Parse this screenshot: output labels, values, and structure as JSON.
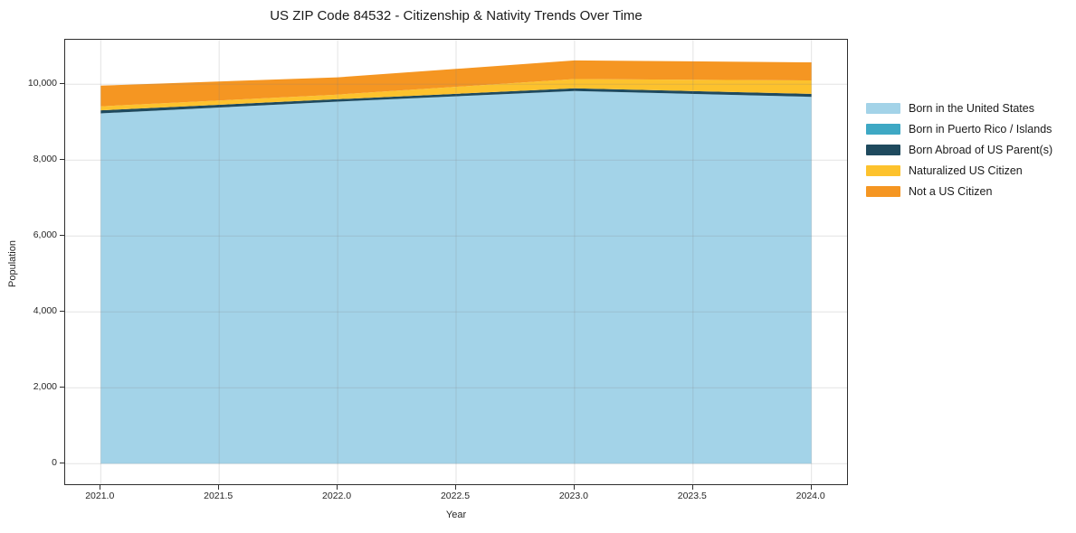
{
  "chart_data": {
    "type": "area",
    "stacked": true,
    "title": "US ZIP Code 84532 - Citizenship & Nativity Trends Over Time",
    "xlabel": "Year",
    "ylabel": "Population",
    "x": [
      2021,
      2022,
      2023,
      2024
    ],
    "series": [
      {
        "name": "Born in the United States",
        "color": "#a3d3e8",
        "values": [
          9230,
          9540,
          9820,
          9665
        ]
      },
      {
        "name": "Born in Puerto Rico / Islands",
        "color": "#3ea8c4",
        "values": [
          0,
          0,
          0,
          0
        ]
      },
      {
        "name": "Born Abroad of US Parent(s)",
        "color": "#1f4a5e",
        "values": [
          80,
          65,
          70,
          80
        ]
      },
      {
        "name": "Naturalized US Citizen",
        "color": "#fdc22d",
        "values": [
          105,
          120,
          245,
          355
        ]
      },
      {
        "name": "Not a US Citizen",
        "color": "#f59622",
        "values": [
          545,
          455,
          490,
          475
        ]
      }
    ],
    "stack_totals": [
      9960,
      10180,
      10625,
      10575
    ],
    "xlim": [
      2020.85,
      2024.15
    ],
    "ylim": [
      -540,
      11170
    ],
    "xticks": {
      "values": [
        2021.0,
        2021.5,
        2022.0,
        2022.5,
        2023.0,
        2023.5,
        2024.0
      ],
      "labels": [
        "2021.0",
        "2021.5",
        "2022.0",
        "2022.5",
        "2023.0",
        "2023.5",
        "2024.0"
      ]
    },
    "yticks": {
      "values": [
        0,
        2000,
        4000,
        6000,
        8000,
        10000
      ],
      "labels": [
        "0",
        "2,000",
        "4,000",
        "6,000",
        "8,000",
        "10,000"
      ]
    },
    "grid": true,
    "grid_color": "#808080",
    "grid_opacity": 0.22,
    "frame_color": "#2e2e2e",
    "legend_position": "right"
  }
}
